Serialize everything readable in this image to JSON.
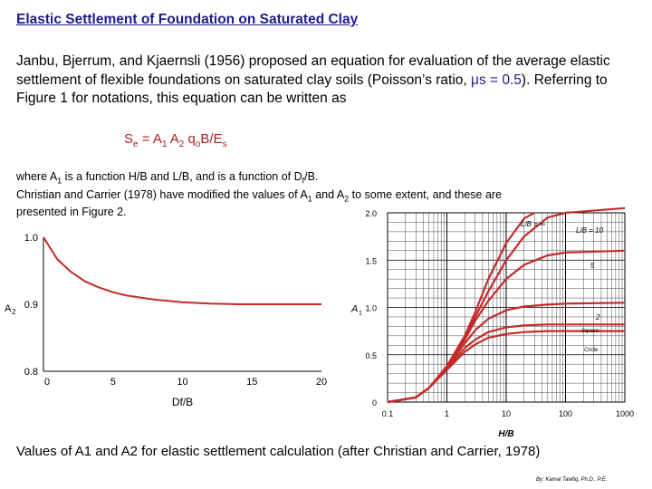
{
  "title": "Elastic Settlement of Foundation on Saturated Clay",
  "intro": {
    "part1": "Janbu, Bjerrum, and Kjaernsli (1956) proposed an equation for evaluation of the average elastic settlement of flexible foundations on saturated clay soils (Poisson’s ratio, ",
    "mu": "μs = 0.5",
    "part2": ").  Referring to Figure 1 for notations, this equation can be written as"
  },
  "equation": {
    "s": "S",
    "s_sub": "e",
    "eq": " = A",
    "a1_sub": "1",
    "a2": " A",
    "a2_sub": "2",
    "q": " q",
    "q_sub": "o",
    "tail": "B/E",
    "e_sub": "s"
  },
  "para2": {
    "t1": "where A",
    "s1": "1",
    "t2": " is a function H/B and L/B, and is a function of D",
    "s2": "f",
    "t3": "/B.",
    "line2a": "Christian and Carrier (1978) have modified the values of A",
    "s3": "1",
    "line2b": " and A",
    "s4": "2",
    "line2c": " to some extent, and these are",
    "line3": "presented in Figure 2."
  },
  "chart_data": [
    {
      "type": "line",
      "ylabel": "A2",
      "xlabel": "Df/B",
      "xlim": [
        0,
        20
      ],
      "ylim": [
        0.8,
        1.0
      ],
      "x_ticks": [
        "0",
        "5",
        "10",
        "15",
        "20"
      ],
      "y_ticks": [
        "0.8",
        "0.9",
        "1.0"
      ],
      "series": [
        {
          "x": [
            0,
            1,
            2,
            3,
            4,
            5,
            6,
            8,
            10,
            12,
            14,
            16,
            18,
            20
          ],
          "y": [
            1.0,
            0.967,
            0.948,
            0.934,
            0.925,
            0.918,
            0.913,
            0.907,
            0.903,
            0.901,
            0.9,
            0.9,
            0.9,
            0.9
          ]
        }
      ],
      "color": "#c42a2a"
    },
    {
      "type": "line",
      "ylabel": "A1",
      "xlabel": "H/B",
      "xscale": "log",
      "xlim": [
        0.1,
        1000
      ],
      "ylim": [
        0,
        2.0
      ],
      "x_ticks": [
        "0.1",
        "1",
        "10",
        "100",
        "1000"
      ],
      "y_ticks": [
        "0",
        "0.5",
        "1.0",
        "1.5",
        "2.0"
      ],
      "series": [
        {
          "name": "L/B = ∞",
          "x": [
            0.1,
            0.3,
            0.5,
            1,
            2,
            3,
            5,
            10,
            20,
            30
          ],
          "y": [
            0.0,
            0.05,
            0.15,
            0.38,
            0.7,
            0.95,
            1.3,
            1.68,
            1.94,
            2.0
          ]
        },
        {
          "name": "L/B = 10",
          "x": [
            0.1,
            0.3,
            0.5,
            1,
            2,
            3,
            5,
            10,
            20,
            50,
            100,
            1000
          ],
          "y": [
            0.0,
            0.05,
            0.15,
            0.37,
            0.68,
            0.9,
            1.17,
            1.5,
            1.75,
            1.95,
            2.0,
            2.05
          ]
        },
        {
          "name": "5",
          "x": [
            0.1,
            0.3,
            0.5,
            1,
            2,
            3,
            5,
            10,
            20,
            50,
            100,
            1000
          ],
          "y": [
            0.0,
            0.05,
            0.15,
            0.37,
            0.66,
            0.86,
            1.07,
            1.3,
            1.45,
            1.55,
            1.58,
            1.6
          ]
        },
        {
          "name": "2",
          "x": [
            0.1,
            0.3,
            0.5,
            1,
            2,
            3,
            5,
            10,
            20,
            50,
            100,
            1000
          ],
          "y": [
            0.0,
            0.05,
            0.15,
            0.36,
            0.62,
            0.76,
            0.88,
            0.97,
            1.01,
            1.03,
            1.04,
            1.05
          ]
        },
        {
          "name": "Square",
          "x": [
            0.1,
            0.3,
            0.5,
            1,
            2,
            3,
            5,
            10,
            20,
            50,
            100,
            1000
          ],
          "y": [
            0.0,
            0.05,
            0.15,
            0.35,
            0.57,
            0.66,
            0.74,
            0.79,
            0.81,
            0.82,
            0.82,
            0.82
          ]
        },
        {
          "name": "Circle",
          "x": [
            0.1,
            0.3,
            0.5,
            1,
            2,
            3,
            5,
            10,
            20,
            50,
            100,
            1000
          ],
          "y": [
            0.0,
            0.05,
            0.15,
            0.34,
            0.53,
            0.61,
            0.68,
            0.72,
            0.74,
            0.75,
            0.75,
            0.75
          ]
        }
      ],
      "color": "#c42a2a"
    }
  ],
  "caption": "Values of A1 and A2 for elastic settlement calculation (after Christian and Carrier, 1978)",
  "credit": "By: Kamal Tawfiq, Ph.D., P.E."
}
